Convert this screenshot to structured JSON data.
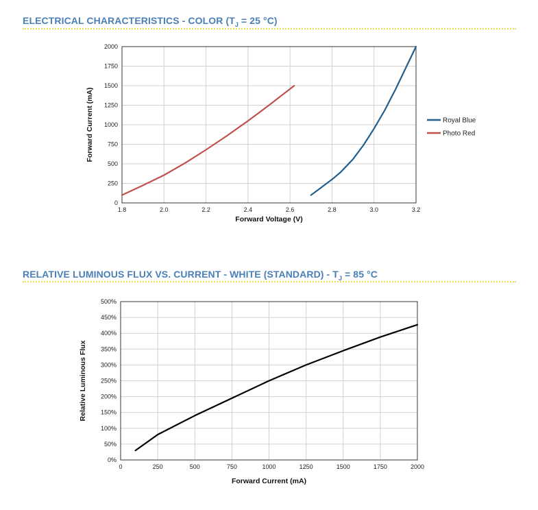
{
  "colors": {
    "title": "#4a7fb8",
    "rule": "#e6dc55",
    "royal_blue": "#1f5e8e",
    "photo_red": "#c0504d",
    "white_curve": "#000000",
    "grid": "#d0d0d0"
  },
  "section1": {
    "title_prefix": "ELECTRICAL CHARACTERISTICS - COLOR (T",
    "title_sub": "J",
    "title_suffix": " = 25 °C)"
  },
  "section2": {
    "title_prefix": "RELATIVE LUMINOUS FLUX VS. CURRENT - WHITE (STANDARD) - T",
    "title_sub": "J",
    "title_suffix": " = 85 °C"
  },
  "chart_data": [
    {
      "type": "line",
      "title": "ELECTRICAL CHARACTERISTICS - COLOR (TJ = 25 °C)",
      "xlabel": "Forward Voltage (V)",
      "ylabel": "Forward Current (mA)",
      "xlim": [
        1.8,
        3.2
      ],
      "ylim": [
        0,
        2000
      ],
      "xticks": [
        "1.8",
        "2.0",
        "2.2",
        "2.4",
        "2.6",
        "2.8",
        "3.0",
        "3.2"
      ],
      "xtick_values": [
        1.8,
        2.0,
        2.2,
        2.4,
        2.6,
        2.8,
        3.0,
        3.2
      ],
      "yticks": [
        "0",
        "250",
        "500",
        "750",
        "1000",
        "1250",
        "1500",
        "1750",
        "2000"
      ],
      "ytick_values": [
        0,
        250,
        500,
        750,
        1000,
        1250,
        1500,
        1750,
        2000
      ],
      "grid": true,
      "legend_position": "right",
      "series": [
        {
          "name": "Royal Blue",
          "color": "#1f5e8e",
          "x": [
            2.7,
            2.75,
            2.8,
            2.84,
            2.9,
            2.95,
            3.0,
            3.05,
            3.1,
            3.15,
            3.2
          ],
          "y": [
            100,
            200,
            300,
            390,
            560,
            740,
            950,
            1180,
            1440,
            1720,
            2000
          ]
        },
        {
          "name": "Photo Red",
          "color": "#c0504d",
          "x": [
            1.8,
            1.9,
            2.0,
            2.1,
            2.2,
            2.3,
            2.4,
            2.5,
            2.62
          ],
          "y": [
            100,
            225,
            355,
            510,
            680,
            860,
            1050,
            1250,
            1500
          ]
        }
      ]
    },
    {
      "type": "line",
      "title": "RELATIVE LUMINOUS FLUX VS. CURRENT - WHITE (STANDARD) - TJ = 85 °C",
      "xlabel": "Forward Current (mA)",
      "ylabel": "Relative Luminous Flux",
      "xlim": [
        0,
        2000
      ],
      "ylim": [
        0,
        500
      ],
      "xticks": [
        "0",
        "250",
        "500",
        "750",
        "1000",
        "1250",
        "1500",
        "1750",
        "2000"
      ],
      "xtick_values": [
        0,
        250,
        500,
        750,
        1000,
        1250,
        1500,
        1750,
        2000
      ],
      "yticks": [
        "0%",
        "50%",
        "100%",
        "150%",
        "200%",
        "250%",
        "300%",
        "350%",
        "400%",
        "450%",
        "500%"
      ],
      "ytick_values": [
        0,
        50,
        100,
        150,
        200,
        250,
        300,
        350,
        400,
        450,
        500
      ],
      "grid": true,
      "series": [
        {
          "name": "White (Standard)",
          "color": "#000000",
          "x": [
            100,
            250,
            500,
            750,
            1000,
            1250,
            1500,
            1750,
            2000
          ],
          "y": [
            30,
            80,
            140,
            195,
            250,
            300,
            345,
            388,
            427
          ]
        }
      ]
    }
  ]
}
